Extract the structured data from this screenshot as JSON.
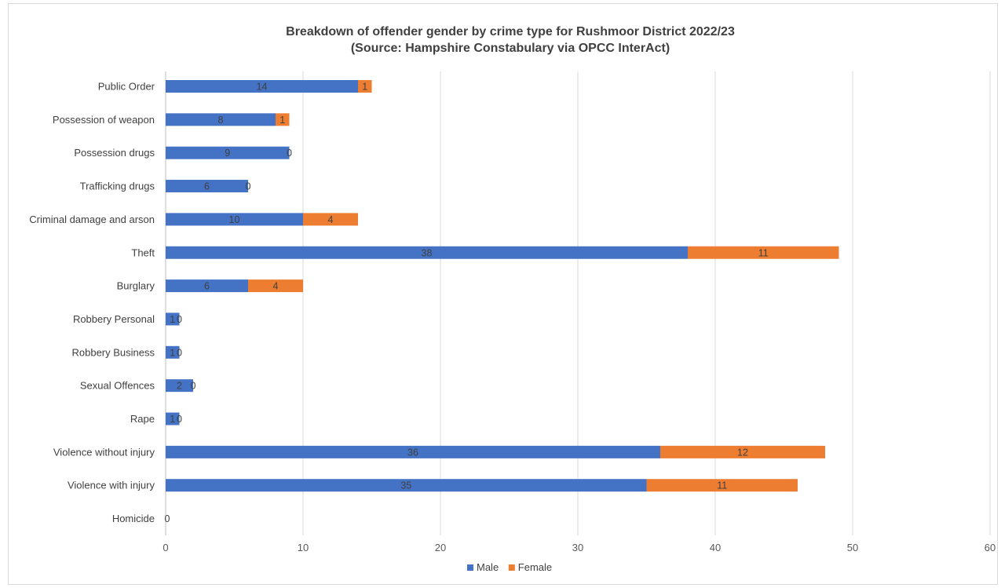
{
  "chart_data": {
    "type": "bar",
    "orientation": "horizontal",
    "stacked": true,
    "title": "Breakdown of offender gender by crime type for Rushmoor District 2022/23",
    "subtitle": "(Source: Hampshire Constabulary via OPCC InterAct)",
    "categories": [
      "Public Order",
      "Possession of weapon",
      "Possession drugs",
      "Trafficking drugs",
      "Criminal damage and arson",
      "Theft",
      "Burglary",
      "Robbery Personal",
      "Robbery Business",
      "Sexual Offences",
      "Rape",
      "Violence without injury",
      "Violence with injury",
      "Homicide"
    ],
    "series": [
      {
        "name": "Male",
        "color": "#4472c4",
        "values": [
          14,
          8,
          9,
          6,
          10,
          38,
          6,
          1,
          1,
          2,
          1,
          36,
          35,
          0
        ]
      },
      {
        "name": "Female",
        "color": "#ed7d31",
        "values": [
          1,
          1,
          0,
          0,
          4,
          11,
          4,
          0,
          0,
          0,
          0,
          12,
          11,
          0
        ]
      }
    ],
    "homicide_label": "0",
    "xlim": [
      0,
      60
    ],
    "x_ticks": [
      0,
      10,
      20,
      30,
      40,
      50,
      60
    ],
    "grid": true,
    "legend_position": "bottom"
  }
}
